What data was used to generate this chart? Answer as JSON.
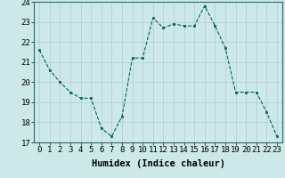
{
  "x": [
    0,
    1,
    2,
    3,
    4,
    5,
    6,
    7,
    8,
    9,
    10,
    11,
    12,
    13,
    14,
    15,
    16,
    17,
    18,
    19,
    20,
    21,
    22,
    23
  ],
  "y": [
    21.6,
    20.6,
    20.0,
    19.5,
    19.2,
    19.2,
    17.7,
    17.3,
    18.3,
    21.2,
    21.2,
    23.2,
    22.7,
    22.9,
    22.8,
    22.8,
    23.8,
    22.8,
    21.7,
    19.5,
    19.5,
    19.5,
    18.5,
    17.3
  ],
  "xlabel": "Humidex (Indice chaleur)",
  "xlim": [
    -0.5,
    23.5
  ],
  "ylim": [
    17,
    24
  ],
  "yticks": [
    17,
    18,
    19,
    20,
    21,
    22,
    23,
    24
  ],
  "xticks": [
    0,
    1,
    2,
    3,
    4,
    5,
    6,
    7,
    8,
    9,
    10,
    11,
    12,
    13,
    14,
    15,
    16,
    17,
    18,
    19,
    20,
    21,
    22,
    23
  ],
  "line_color": "#006060",
  "marker_color": "#006060",
  "bg_color": "#cce8e8",
  "grid_color": "#b0cccc",
  "xlabel_fontsize": 7.5,
  "tick_fontsize": 6.5
}
